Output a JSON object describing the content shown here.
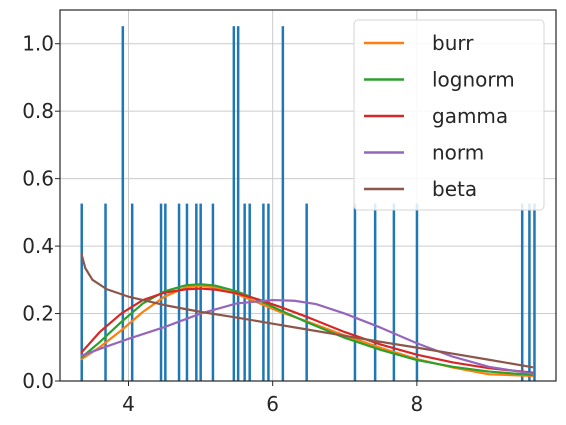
{
  "chart_data": {
    "type": "bar",
    "title": "",
    "xlabel": "",
    "ylabel": "",
    "xlim": [
      3.05,
      9.93
    ],
    "ylim": [
      0,
      1.1
    ],
    "grid": true,
    "legend_position": "top-right",
    "x_ticks": [
      {
        "value": 4,
        "label": "4"
      },
      {
        "value": 6,
        "label": "6"
      },
      {
        "value": 8,
        "label": "8"
      }
    ],
    "y_ticks": [
      {
        "value": 0.0,
        "label": "0.0"
      },
      {
        "value": 0.2,
        "label": "0.2"
      },
      {
        "value": 0.4,
        "label": "0.4"
      },
      {
        "value": 0.6,
        "label": "0.6"
      },
      {
        "value": 0.8,
        "label": "0.8"
      },
      {
        "value": 1.0,
        "label": "1.0"
      }
    ],
    "histogram": {
      "color": "#1f77b4",
      "bin_width": 0.032,
      "bars": [
        {
          "x": 3.35,
          "y": 0.526
        },
        {
          "x": 3.68,
          "y": 0.526
        },
        {
          "x": 3.92,
          "y": 1.052
        },
        {
          "x": 4.05,
          "y": 0.526
        },
        {
          "x": 4.45,
          "y": 0.526
        },
        {
          "x": 4.51,
          "y": 0.526
        },
        {
          "x": 4.7,
          "y": 0.526
        },
        {
          "x": 4.81,
          "y": 0.526
        },
        {
          "x": 4.94,
          "y": 0.526
        },
        {
          "x": 5.0,
          "y": 0.526
        },
        {
          "x": 5.17,
          "y": 0.526
        },
        {
          "x": 5.46,
          "y": 1.052
        },
        {
          "x": 5.52,
          "y": 1.052
        },
        {
          "x": 5.61,
          "y": 0.526
        },
        {
          "x": 5.68,
          "y": 0.526
        },
        {
          "x": 5.87,
          "y": 0.526
        },
        {
          "x": 5.94,
          "y": 0.526
        },
        {
          "x": 6.14,
          "y": 1.052
        },
        {
          "x": 6.47,
          "y": 0.526
        },
        {
          "x": 7.14,
          "y": 0.526
        },
        {
          "x": 7.42,
          "y": 0.526
        },
        {
          "x": 7.68,
          "y": 0.526
        },
        {
          "x": 8.0,
          "y": 0.526
        },
        {
          "x": 9.46,
          "y": 0.526
        },
        {
          "x": 9.56,
          "y": 0.526
        },
        {
          "x": 9.63,
          "y": 0.526
        }
      ]
    },
    "series": [
      {
        "name": "burr",
        "color": "#ff7f0e",
        "x": [
          3.35,
          3.6,
          3.9,
          4.2,
          4.5,
          4.8,
          5.0,
          5.2,
          5.5,
          5.8,
          6.1,
          6.5,
          7.0,
          7.5,
          8.0,
          8.5,
          9.0,
          9.6
        ],
        "y": [
          0.065,
          0.1,
          0.15,
          0.205,
          0.25,
          0.278,
          0.283,
          0.277,
          0.258,
          0.232,
          0.205,
          0.175,
          0.135,
          0.098,
          0.065,
          0.04,
          0.02,
          0.015
        ]
      },
      {
        "name": "lognorm",
        "color": "#2ca02c",
        "x": [
          3.35,
          3.6,
          3.9,
          4.2,
          4.5,
          4.8,
          5.0,
          5.2,
          5.5,
          5.8,
          6.1,
          6.5,
          7.0,
          7.5,
          8.0,
          8.5,
          9.0,
          9.6
        ],
        "y": [
          0.07,
          0.115,
          0.175,
          0.23,
          0.266,
          0.284,
          0.287,
          0.283,
          0.266,
          0.24,
          0.21,
          0.172,
          0.128,
          0.092,
          0.062,
          0.042,
          0.028,
          0.018
        ]
      },
      {
        "name": "gamma",
        "color": "#d62728",
        "x": [
          3.35,
          3.6,
          3.9,
          4.2,
          4.5,
          4.8,
          5.0,
          5.2,
          5.5,
          5.8,
          6.1,
          6.5,
          7.0,
          7.5,
          8.0,
          8.5,
          9.0,
          9.6
        ],
        "y": [
          0.085,
          0.145,
          0.2,
          0.24,
          0.262,
          0.272,
          0.274,
          0.271,
          0.26,
          0.242,
          0.22,
          0.188,
          0.145,
          0.108,
          0.078,
          0.055,
          0.038,
          0.025
        ]
      },
      {
        "name": "norm",
        "color": "#9467bd",
        "x": [
          3.35,
          3.6,
          4.0,
          4.5,
          5.0,
          5.5,
          6.0,
          6.3,
          6.6,
          7.0,
          7.5,
          8.0,
          8.5,
          9.0,
          9.6
        ],
        "y": [
          0.075,
          0.095,
          0.125,
          0.16,
          0.2,
          0.23,
          0.24,
          0.238,
          0.228,
          0.2,
          0.158,
          0.112,
          0.072,
          0.042,
          0.022
        ]
      },
      {
        "name": "beta",
        "color": "#8c564b",
        "x": [
          3.35,
          3.4,
          3.5,
          3.7,
          4.0,
          4.5,
          5.0,
          5.5,
          6.0,
          6.5,
          7.0,
          7.5,
          8.0,
          8.5,
          9.0,
          9.6
        ],
        "y": [
          0.375,
          0.335,
          0.3,
          0.272,
          0.25,
          0.225,
          0.205,
          0.188,
          0.17,
          0.152,
          0.134,
          0.116,
          0.099,
          0.081,
          0.063,
          0.041
        ]
      }
    ]
  }
}
